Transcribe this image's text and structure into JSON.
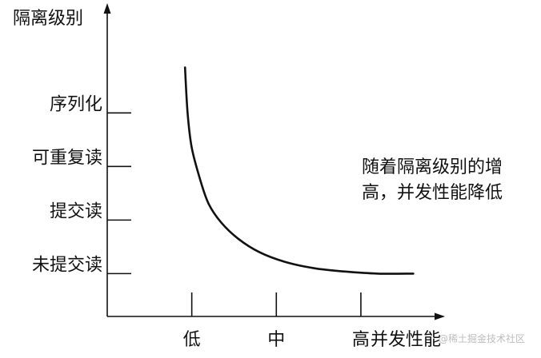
{
  "chart_data": {
    "type": "line",
    "ylabel": "隔离级别",
    "xlabel": "并发性能",
    "y_categories": [
      "未提交读",
      "提交读",
      "可重复读",
      "序列化"
    ],
    "x_categories": [
      "低",
      "中",
      "高"
    ],
    "series": [
      {
        "points": [
          [
            0.92,
            3.85
          ],
          [
            0.95,
            3.0
          ],
          [
            1.0,
            2.35
          ],
          [
            1.1,
            1.75
          ],
          [
            1.2,
            1.3
          ],
          [
            1.35,
            0.95
          ],
          [
            1.55,
            0.65
          ],
          [
            1.8,
            0.4
          ],
          [
            2.1,
            0.22
          ],
          [
            2.45,
            0.1
          ],
          [
            2.8,
            0.04
          ],
          [
            3.2,
            0.0
          ],
          [
            3.62,
            0.0
          ]
        ]
      }
    ],
    "xlim": [
      0,
      3.9
    ],
    "ylim": [
      -0.8,
      4.9
    ],
    "annotation": [
      "随着隔离级别的增",
      "高，并发性能降低"
    ],
    "watermark": "@稀土掘金技术社区",
    "grid": false,
    "legend": "none"
  }
}
